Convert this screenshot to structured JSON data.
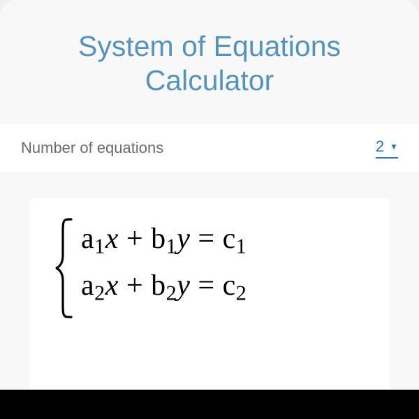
{
  "title": "System of Equations Calculator",
  "form": {
    "num_equations_label": "Number of equations",
    "num_equations_value": "2"
  },
  "equations": {
    "line1_html": "<span class=\"upright\">a</span><sub>1</sub>x <span class=\"upright\">+</span> <span class=\"upright\">b</span><sub>1</sub>y <span class=\"upright\">=</span> <span class=\"upright\">c</span><sub>1</sub>",
    "line2_html": "<span class=\"upright\">a</span><sub>2</sub>x <span class=\"upright\">+</span> <span class=\"upright\">b</span><sub>2</sub>y <span class=\"upright\">=</span> <span class=\"upright\">c</span><sub>2</sub>"
  },
  "colors": {
    "title_color": "#5593b8",
    "label_color": "#6a6a6a",
    "accent": "#2b7ba8",
    "card_bg": "#f8f8f8",
    "row_bg": "#ffffff",
    "bar": "#000000"
  }
}
